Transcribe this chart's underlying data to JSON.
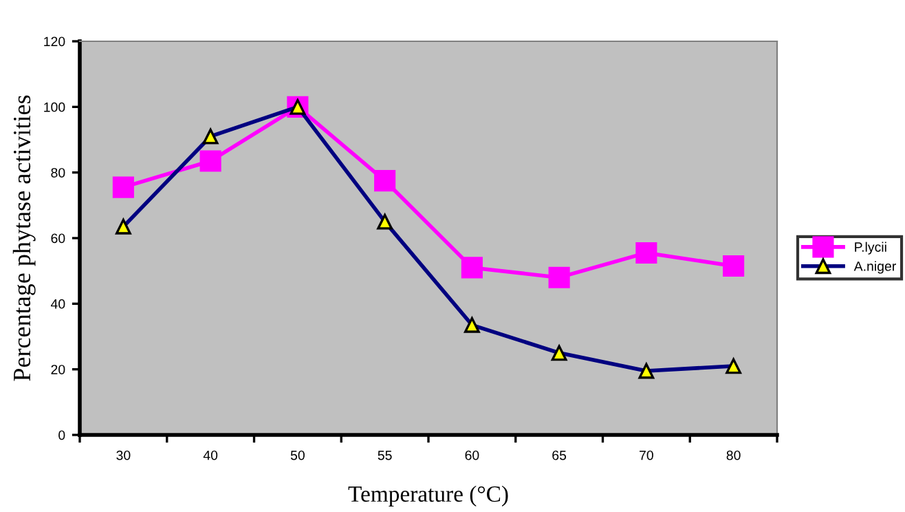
{
  "chart_data": {
    "type": "line",
    "xlabel": "Temperature (°C)",
    "ylabel": "Percentage phytase activities",
    "categories": [
      "30",
      "40",
      "50",
      "55",
      "60",
      "65",
      "70",
      "80"
    ],
    "series": [
      {
        "name": "P.lycii",
        "color": "#ff00ff",
        "marker": "square",
        "values": [
          75.5,
          83.5,
          100,
          77.5,
          51,
          48,
          55.5,
          51.5
        ]
      },
      {
        "name": "A.niger",
        "color": "#000080",
        "marker": "triangle",
        "values": [
          63.5,
          91,
          100,
          65,
          33.5,
          25,
          19.5,
          21
        ]
      }
    ],
    "ylim": [
      0,
      120
    ],
    "yticks": [
      0,
      20,
      40,
      60,
      80,
      100,
      120
    ],
    "grid": false,
    "legend": "right"
  }
}
